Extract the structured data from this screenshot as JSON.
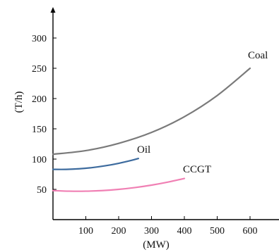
{
  "chart_data": {
    "type": "line",
    "title": "",
    "xlabel": "(MW)",
    "ylabel": "(T/h)",
    "xlim": [
      0,
      650
    ],
    "ylim": [
      0,
      300
    ],
    "x_ticks": [
      100,
      200,
      300,
      400,
      500,
      600
    ],
    "y_ticks": [
      50,
      100,
      150,
      200,
      250,
      300
    ],
    "grid": false,
    "series": [
      {
        "name": "Coal",
        "color": "#7a7a7a",
        "x": [
          0,
          100,
          200,
          300,
          400,
          500,
          600
        ],
        "y": [
          108,
          114,
          126,
          144,
          170,
          205,
          250
        ]
      },
      {
        "name": "Oil",
        "color": "#3d6b9e",
        "x": [
          0,
          40,
          80,
          120,
          160,
          200,
          240,
          260
        ],
        "y": [
          83,
          83,
          84,
          86,
          89,
          93,
          98,
          101
        ]
      },
      {
        "name": "CCGT",
        "color": "#f080b4",
        "x": [
          0,
          50,
          100,
          150,
          200,
          250,
          300,
          350,
          400
        ],
        "y": [
          48,
          47,
          47,
          48,
          50,
          53,
          57,
          62,
          68
        ]
      }
    ]
  }
}
